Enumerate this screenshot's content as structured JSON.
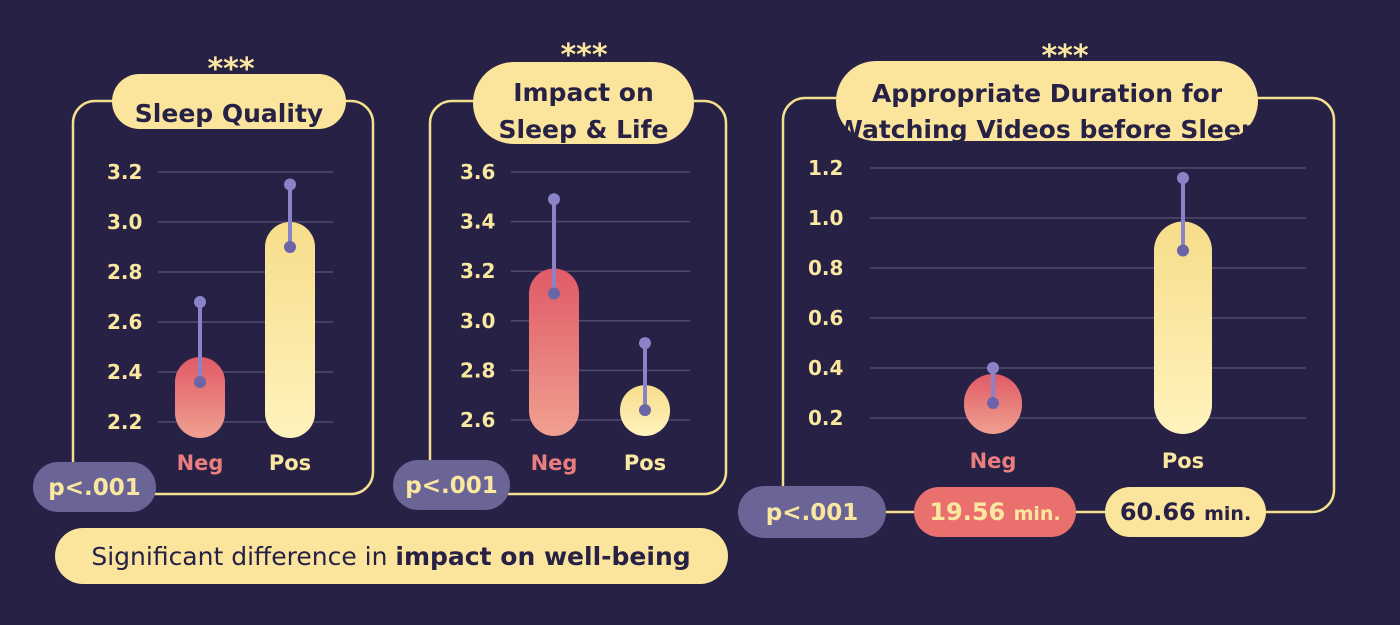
{
  "chart_data": [
    {
      "type": "bar",
      "title": "Sleep Quality",
      "significance": "***",
      "categories": [
        "Neg",
        "Pos"
      ],
      "values": [
        2.36,
        2.9
      ],
      "error_upper": [
        2.68,
        3.15
      ],
      "yticks": [
        "2.2",
        "2.4",
        "2.6",
        "2.8",
        "3.0",
        "3.2"
      ],
      "ylim": [
        2.2,
        3.2
      ],
      "p_value": "p<.001"
    },
    {
      "type": "bar",
      "title": "Impact on Sleep & Life",
      "title_lines": [
        "Impact on",
        "Sleep & Life"
      ],
      "significance": "***",
      "categories": [
        "Neg",
        "Pos"
      ],
      "values": [
        3.11,
        2.64
      ],
      "error_upper": [
        3.49,
        2.91
      ],
      "yticks": [
        "2.6",
        "2.8",
        "3.0",
        "3.2",
        "3.4",
        "3.6"
      ],
      "ylim": [
        2.6,
        3.6
      ],
      "p_value": "p<.001"
    },
    {
      "type": "bar",
      "title": "Appropriate Duration for Watching Videos before Sleep",
      "title_lines": [
        "Appropriate Duration for",
        "Watching Videos before Sleep"
      ],
      "significance": "***",
      "categories": [
        "Neg",
        "Pos"
      ],
      "values": [
        0.26,
        0.87
      ],
      "error_upper": [
        0.4,
        1.16
      ],
      "yticks": [
        "0.2",
        "0.4",
        "0.6",
        "0.8",
        "1.0",
        "1.2"
      ],
      "ylim": [
        0.2,
        1.2
      ],
      "p_value": "p<.001",
      "durations": [
        {
          "value": "19.56",
          "unit": "min."
        },
        {
          "value": "60.66",
          "unit": "min."
        }
      ]
    }
  ],
  "footer": {
    "text_prefix": "Significant difference in ",
    "text_emphasis": "impact on well-being"
  },
  "colors": {
    "background": "#262145",
    "neg_gradient": [
      "#e05a66",
      "#f0a090"
    ],
    "pos_gradient": [
      "#f6dd8a",
      "#fff3bd"
    ],
    "accent": "#fbe49c",
    "error_bar": "#8a83c8",
    "p_pill": "#6a6596"
  }
}
